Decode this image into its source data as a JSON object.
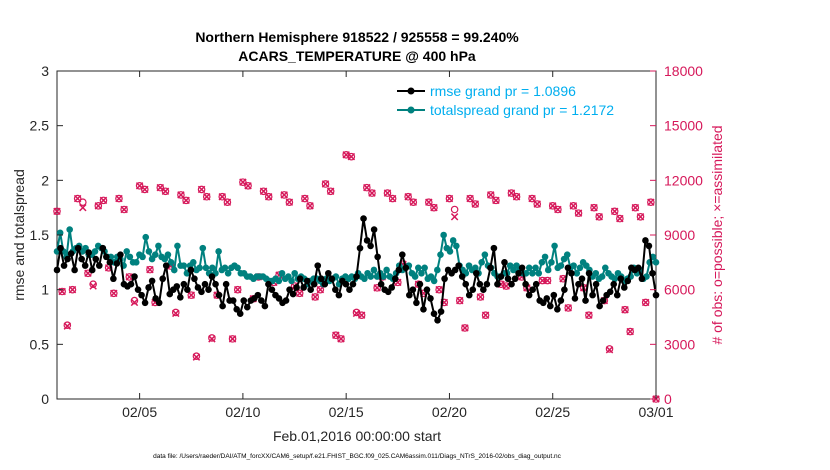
{
  "chart_data": {
    "type": "line",
    "title_line1": "Northern Hemisphere 918522 / 925558 = 99.240%",
    "title_line2": "ACARS_TEMPERATURE @ 400 hPa",
    "xlabel": "Feb.01,2016 00:00:00 start",
    "ylabel_left": "rmse and totalspread",
    "ylabel_right": "# of obs: o=possible; ×=assimilated",
    "footnote": "data file: /Users/raeder/DAI/ATM_forcXX/CAM6_setup/f.e21.FHIST_BGC.f09_025.CAM6assim.011/Diags_NTrS_2016-02/obs_diag_output.nc",
    "xlim": [
      1.0,
      30.0
    ],
    "ylim_left": [
      0,
      3
    ],
    "ylim_right": [
      0,
      18000
    ],
    "xticks": [
      5,
      10,
      15,
      20,
      25,
      30
    ],
    "xtick_labels": [
      "02/05",
      "02/10",
      "02/15",
      "02/20",
      "02/25",
      "03/01"
    ],
    "yticks_left": [
      0,
      0.5,
      1,
      1.5,
      2,
      2.5,
      3
    ],
    "ytick_labels_left": [
      "0",
      "0.5",
      "1",
      "1.5",
      "2",
      "2.5",
      "3"
    ],
    "yticks_right": [
      0,
      3000,
      6000,
      9000,
      12000,
      15000,
      18000
    ],
    "ytick_labels_right": [
      "0",
      "3000",
      "6000",
      "9000",
      "12000",
      "15000",
      "18000"
    ],
    "colors": {
      "rmse": "#000000",
      "spread": "#00817f",
      "obs": "#d6185a",
      "legend_text": "#00aeef"
    },
    "series": [
      {
        "name": "rmse grand pr = 1.0896",
        "key": "rmse",
        "values": [
          1.18,
          1.38,
          1.22,
          1.28,
          1.33,
          1.18,
          1.38,
          1.28,
          1.22,
          1.34,
          1.18,
          1.28,
          1.22,
          1.38,
          1.3,
          1.25,
          1.1,
          1.24,
          1.32,
          1.05,
          1.03,
          1.05,
          1.12,
          1.0,
          0.95,
          0.88,
          1.02,
          1.08,
          0.92,
          0.88,
          1.1,
          1.22,
          0.96,
          1.0,
          1.03,
          0.93,
          1.05,
          1.0,
          1.18,
          1.1,
          1.02,
          0.98,
          1.05,
          1.0,
          1.12,
          1.05,
          0.95,
          0.85,
          1.05,
          0.9,
          0.9,
          0.82,
          0.78,
          0.9,
          0.84,
          0.9,
          0.92,
          0.95,
          0.9,
          0.85,
          1.05,
          1.0,
          0.95,
          0.92,
          0.88,
          0.9,
          1.0,
          0.96,
          1.02,
          1.1,
          1.02,
          1.08,
          1.0,
          1.05,
          1.22,
          1.1,
          1.05,
          1.15,
          1.1,
          1.0,
          0.95,
          1.08,
          1.05,
          1.0,
          1.05,
          1.12,
          1.38,
          1.65,
          1.45,
          1.4,
          1.55,
          1.3,
          1.05,
          1.0,
          0.98,
          1.02,
          1.1,
          1.18,
          1.32,
          1.2,
          0.95,
          1.0,
          0.88,
          1.05,
          0.82,
          1.0,
          0.92,
          0.78,
          0.72,
          0.8,
          1.1,
          1.18,
          1.15,
          1.18,
          1.22,
          1.12,
          1.05,
          0.95,
          1.0,
          1.15,
          1.05,
          1.0,
          1.05,
          1.2,
          1.38,
          1.05,
          1.12,
          1.25,
          1.1,
          1.05,
          1.1,
          1.15,
          1.2,
          1.05,
          0.95,
          1.0,
          1.05,
          0.9,
          0.88,
          0.92,
          0.85,
          0.95,
          0.82,
          0.9,
          1.0,
          1.2,
          1.15,
          0.92,
          1.05,
          1.1,
          0.9,
          1.15,
          0.95,
          1.05,
          0.85,
          0.9,
          0.95,
          0.98,
          1.05,
          0.95,
          1.1,
          1.02,
          1.08,
          1.2,
          1.18,
          1.2,
          1.1,
          1.45,
          1.4,
          1.15,
          0.95
        ]
      },
      {
        "name": "totalspread grand pr = 1.2172",
        "key": "spread",
        "values": [
          1.35,
          1.52,
          1.35,
          1.3,
          1.55,
          1.35,
          1.38,
          1.4,
          1.35,
          1.38,
          1.32,
          1.32,
          1.35,
          1.4,
          1.38,
          1.35,
          1.3,
          1.3,
          1.25,
          1.3,
          1.28,
          1.22,
          1.35,
          1.3,
          1.25,
          1.25,
          1.32,
          1.3,
          1.48,
          1.35,
          1.28,
          1.32,
          1.4,
          1.3,
          1.28,
          1.32,
          1.25,
          1.18,
          1.4,
          1.22,
          1.22,
          1.15,
          1.22,
          1.25,
          1.18,
          1.2,
          1.38,
          1.2,
          1.15,
          1.2,
          1.15,
          1.35,
          1.18,
          1.2,
          1.15,
          1.2,
          1.22,
          1.2,
          1.15,
          1.15,
          1.12,
          1.12,
          1.1,
          1.12,
          1.12,
          1.12,
          1.1,
          1.08,
          1.08,
          1.1,
          1.08,
          1.15,
          1.1,
          1.12,
          1.08,
          1.15,
          1.1,
          1.12,
          1.1,
          1.05,
          1.08,
          1.1,
          1.1,
          1.08,
          1.05,
          1.1,
          1.08,
          1.1,
          1.12,
          1.05,
          1.1,
          1.12,
          1.1,
          1.12,
          1.1,
          1.15,
          1.12,
          1.1,
          1.15,
          1.12,
          1.18,
          1.12,
          1.15,
          1.12,
          1.18,
          1.12,
          1.1,
          1.15,
          1.22,
          1.18,
          1.2,
          1.22,
          1.15,
          1.12,
          1.2,
          1.15,
          1.2,
          1.1,
          1.12,
          1.08,
          1.18,
          1.32,
          1.5,
          1.38,
          1.35,
          1.45,
          1.4,
          1.22,
          1.18,
          1.15,
          1.22,
          1.18,
          1.2,
          1.15,
          1.25,
          1.32,
          1.22,
          1.2,
          1.15,
          1.12,
          1.12,
          1.15,
          1.15,
          1.22,
          1.18,
          1.22,
          1.18,
          1.15,
          1.15,
          1.2,
          1.15,
          1.2,
          1.15,
          1.25,
          1.3,
          1.18,
          1.25,
          1.4,
          1.2,
          1.22,
          1.28,
          1.32,
          1.2,
          1.22,
          1.15,
          1.2,
          1.25,
          1.22,
          1.18,
          1.12,
          1.15,
          1.1,
          1.12,
          1.2,
          1.15,
          1.12,
          1.1,
          1.15,
          1.12,
          1.08,
          1.1,
          1.12,
          1.2,
          1.15,
          1.18,
          1.1,
          1.12,
          1.25,
          1.3,
          1.25
        ]
      }
    ],
    "obs_possible": [
      [
        1.0,
        10300
      ],
      [
        1.25,
        5900
      ],
      [
        1.5,
        4050
      ],
      [
        1.75,
        6000
      ],
      [
        2.0,
        11000
      ],
      [
        2.25,
        10800
      ],
      [
        2.5,
        6900
      ],
      [
        2.75,
        6300
      ],
      [
        3.0,
        10600
      ],
      [
        3.25,
        10900
      ],
      [
        3.5,
        7200
      ],
      [
        3.75,
        5800
      ],
      [
        4.0,
        11000
      ],
      [
        4.25,
        10400
      ],
      [
        4.5,
        6700
      ],
      [
        4.75,
        5400
      ],
      [
        5.0,
        11700
      ],
      [
        5.25,
        11500
      ],
      [
        5.5,
        7100
      ],
      [
        5.75,
        5300
      ],
      [
        6.0,
        11600
      ],
      [
        6.25,
        11400
      ],
      [
        6.5,
        7300
      ],
      [
        6.75,
        4750
      ],
      [
        7.0,
        11200
      ],
      [
        7.25,
        10900
      ],
      [
        7.5,
        5700
      ],
      [
        7.75,
        2350
      ],
      [
        8.0,
        11500
      ],
      [
        8.25,
        11100
      ],
      [
        8.5,
        3350
      ],
      [
        8.75,
        5700
      ],
      [
        9.0,
        11100
      ],
      [
        9.25,
        10800
      ],
      [
        9.5,
        3300
      ],
      [
        9.75,
        6000
      ],
      [
        10.0,
        11900
      ],
      [
        10.25,
        11700
      ],
      [
        10.5,
        5500
      ],
      [
        10.75,
        6700
      ],
      [
        11.0,
        11400
      ],
      [
        11.25,
        11100
      ],
      [
        11.5,
        6400
      ],
      [
        11.75,
        6800
      ],
      [
        12.0,
        11200
      ],
      [
        12.25,
        10800
      ],
      [
        12.5,
        6200
      ],
      [
        12.75,
        5800
      ],
      [
        13.0,
        11000
      ],
      [
        13.25,
        10600
      ],
      [
        13.5,
        5600
      ],
      [
        13.75,
        6000
      ],
      [
        14.0,
        11800
      ],
      [
        14.25,
        11400
      ],
      [
        14.5,
        3500
      ],
      [
        14.75,
        3300
      ],
      [
        15.0,
        13400
      ],
      [
        15.25,
        13300
      ],
      [
        15.5,
        4750
      ],
      [
        15.75,
        4600
      ],
      [
        16.0,
        11600
      ],
      [
        16.25,
        11300
      ],
      [
        16.5,
        6100
      ],
      [
        16.75,
        6700
      ],
      [
        17.0,
        11300
      ],
      [
        17.25,
        11000
      ],
      [
        17.5,
        6400
      ],
      [
        17.75,
        7400
      ],
      [
        18.0,
        11100
      ],
      [
        18.25,
        10800
      ],
      [
        18.5,
        6300
      ],
      [
        18.75,
        5800
      ],
      [
        19.0,
        10800
      ],
      [
        19.25,
        10500
      ],
      [
        19.5,
        6000
      ],
      [
        19.75,
        5300
      ],
      [
        20.0,
        11000
      ],
      [
        20.25,
        10400
      ],
      [
        20.5,
        5400
      ],
      [
        20.75,
        3900
      ],
      [
        21.0,
        11000
      ],
      [
        21.25,
        10700
      ],
      [
        21.5,
        5600
      ],
      [
        21.75,
        4600
      ],
      [
        22.0,
        11200
      ],
      [
        22.25,
        10900
      ],
      [
        22.5,
        6300
      ],
      [
        22.75,
        6200
      ],
      [
        23.0,
        11300
      ],
      [
        23.25,
        11100
      ],
      [
        23.5,
        6700
      ],
      [
        23.75,
        6100
      ],
      [
        24.0,
        11000
      ],
      [
        24.25,
        10700
      ],
      [
        24.5,
        6500
      ],
      [
        24.75,
        6500
      ],
      [
        25.0,
        10600
      ],
      [
        25.25,
        10400
      ],
      [
        25.5,
        6600
      ],
      [
        25.75,
        5000
      ],
      [
        26.0,
        10600
      ],
      [
        26.25,
        10200
      ],
      [
        26.5,
        6100
      ],
      [
        26.75,
        4600
      ],
      [
        27.0,
        10500
      ],
      [
        27.25,
        10000
      ],
      [
        27.5,
        5400
      ],
      [
        27.75,
        2750
      ],
      [
        28.0,
        10300
      ],
      [
        28.25,
        9900
      ],
      [
        28.5,
        4900
      ],
      [
        28.75,
        3700
      ],
      [
        29.0,
        10500
      ],
      [
        29.25,
        10000
      ],
      [
        29.5,
        5300
      ],
      [
        29.75,
        10800
      ],
      [
        30.0,
        0
      ]
    ],
    "obs_assimilated": [
      [
        1.0,
        10300
      ],
      [
        1.25,
        5900
      ],
      [
        1.5,
        4000
      ],
      [
        1.75,
        6000
      ],
      [
        2.0,
        11000
      ],
      [
        2.25,
        10500
      ],
      [
        2.5,
        6900
      ],
      [
        2.75,
        6200
      ],
      [
        3.0,
        10600
      ],
      [
        3.25,
        10900
      ],
      [
        3.5,
        7200
      ],
      [
        3.75,
        5800
      ],
      [
        4.0,
        11000
      ],
      [
        4.25,
        10400
      ],
      [
        4.5,
        6700
      ],
      [
        4.75,
        5300
      ],
      [
        5.0,
        11700
      ],
      [
        5.25,
        11500
      ],
      [
        5.5,
        7100
      ],
      [
        5.75,
        5300
      ],
      [
        6.0,
        11600
      ],
      [
        6.25,
        11400
      ],
      [
        6.5,
        7300
      ],
      [
        6.75,
        4700
      ],
      [
        7.0,
        11200
      ],
      [
        7.25,
        10900
      ],
      [
        7.5,
        5700
      ],
      [
        7.75,
        2300
      ],
      [
        8.0,
        11500
      ],
      [
        8.25,
        11100
      ],
      [
        8.5,
        3300
      ],
      [
        8.75,
        5700
      ],
      [
        9.0,
        11100
      ],
      [
        9.25,
        10800
      ],
      [
        9.5,
        3300
      ],
      [
        9.75,
        6000
      ],
      [
        10.0,
        11900
      ],
      [
        10.25,
        11700
      ],
      [
        10.5,
        5500
      ],
      [
        10.75,
        6700
      ],
      [
        11.0,
        11400
      ],
      [
        11.25,
        11100
      ],
      [
        11.5,
        6400
      ],
      [
        11.75,
        6800
      ],
      [
        12.0,
        11200
      ],
      [
        12.25,
        10800
      ],
      [
        12.5,
        6200
      ],
      [
        12.75,
        5800
      ],
      [
        13.0,
        11000
      ],
      [
        13.25,
        10600
      ],
      [
        13.5,
        5600
      ],
      [
        13.75,
        6000
      ],
      [
        14.0,
        11800
      ],
      [
        14.25,
        11400
      ],
      [
        14.5,
        3500
      ],
      [
        14.75,
        3300
      ],
      [
        15.0,
        13400
      ],
      [
        15.25,
        13300
      ],
      [
        15.5,
        4700
      ],
      [
        15.75,
        4600
      ],
      [
        16.0,
        11600
      ],
      [
        16.25,
        11300
      ],
      [
        16.5,
        6100
      ],
      [
        16.75,
        6700
      ],
      [
        17.0,
        11300
      ],
      [
        17.25,
        11000
      ],
      [
        17.5,
        6400
      ],
      [
        17.75,
        7400
      ],
      [
        18.0,
        11100
      ],
      [
        18.25,
        10800
      ],
      [
        18.5,
        6300
      ],
      [
        18.75,
        5800
      ],
      [
        19.0,
        10800
      ],
      [
        19.25,
        10500
      ],
      [
        19.5,
        6000
      ],
      [
        19.75,
        5300
      ],
      [
        20.0,
        11000
      ],
      [
        20.25,
        10000
      ],
      [
        20.5,
        5400
      ],
      [
        20.75,
        3900
      ],
      [
        21.0,
        11000
      ],
      [
        21.25,
        10700
      ],
      [
        21.5,
        5600
      ],
      [
        21.75,
        4600
      ],
      [
        22.0,
        11200
      ],
      [
        22.25,
        10900
      ],
      [
        22.5,
        6300
      ],
      [
        22.75,
        6200
      ],
      [
        23.0,
        11300
      ],
      [
        23.25,
        11100
      ],
      [
        23.5,
        6700
      ],
      [
        23.75,
        6100
      ],
      [
        24.0,
        11000
      ],
      [
        24.25,
        10700
      ],
      [
        24.5,
        6500
      ],
      [
        24.75,
        6500
      ],
      [
        25.0,
        10600
      ],
      [
        25.25,
        10400
      ],
      [
        25.5,
        6600
      ],
      [
        25.75,
        5000
      ],
      [
        26.0,
        10600
      ],
      [
        26.25,
        10200
      ],
      [
        26.5,
        6100
      ],
      [
        26.75,
        4600
      ],
      [
        27.0,
        10500
      ],
      [
        27.25,
        10000
      ],
      [
        27.5,
        5400
      ],
      [
        27.75,
        2700
      ],
      [
        28.0,
        10300
      ],
      [
        28.25,
        9900
      ],
      [
        28.5,
        4900
      ],
      [
        28.75,
        3700
      ],
      [
        29.0,
        10500
      ],
      [
        29.25,
        10000
      ],
      [
        29.5,
        5300
      ],
      [
        29.75,
        10800
      ],
      [
        30.0,
        0
      ]
    ]
  }
}
